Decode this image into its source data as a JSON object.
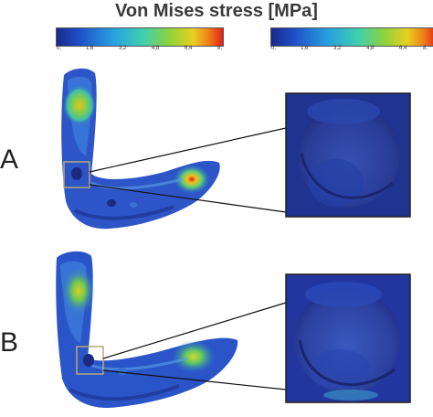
{
  "title": "Von Mises stress [MPa]",
  "colorbar": {
    "ticks": [
      "0,",
      "1,6",
      "3,2",
      "4,8",
      "6,4",
      "8,"
    ]
  },
  "panels": {
    "a_label": "A",
    "b_label": "B"
  },
  "colors": {
    "low": "#1a2a8c",
    "mid": "#3fcfb0",
    "high": "#e0201a",
    "box": "#b8a878"
  }
}
